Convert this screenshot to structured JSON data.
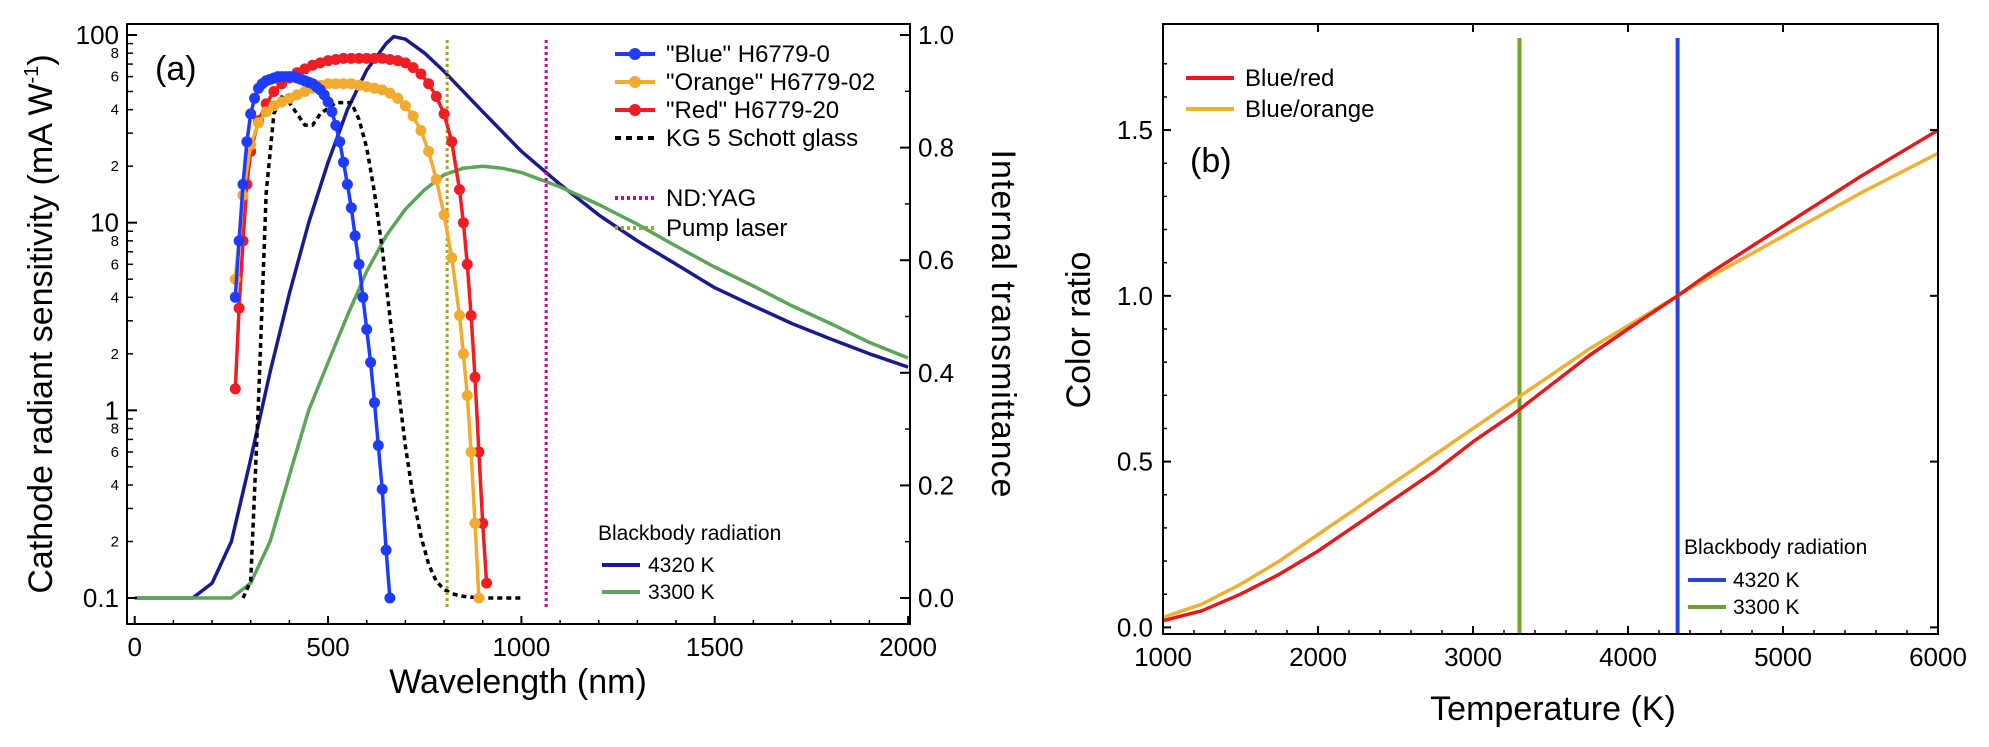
{
  "chart_data": [
    {
      "panel": "(a)",
      "type": "line",
      "xlabel": "Wavelength (nm)",
      "ylabel": "Cathode radiant sensitivity (mA W-1)",
      "ylabel_main": "Cathode radiant sensitivity (mA W",
      "ylabel_exp": "-1",
      "ylabel_close": ")",
      "ylabel_right": "Internal transmittance",
      "xlim": [
        -20,
        2005
      ],
      "xticks": [
        0,
        500,
        1000,
        1500,
        2000
      ],
      "xtick_labels": [
        "0",
        "500",
        "1000",
        "1500",
        "2000"
      ],
      "ylim": [
        0.1,
        100
      ],
      "yscale": "log",
      "yticks": [
        0.1,
        1,
        10,
        100
      ],
      "ytick_labels": [
        "0.1",
        "1",
        "10",
        "100"
      ],
      "yminor_labels": [
        {
          "value": 2,
          "label": "2"
        },
        {
          "value": 4,
          "label": "4"
        },
        {
          "value": 6,
          "label": "6"
        },
        {
          "value": 8,
          "label": "8"
        },
        {
          "value": 20,
          "label": "2"
        },
        {
          "value": 40,
          "label": "4"
        },
        {
          "value": 60,
          "label": "6"
        },
        {
          "value": 80,
          "label": "8"
        },
        {
          "value": 0.2,
          "label": "2"
        },
        {
          "value": 0.4,
          "label": "4"
        },
        {
          "value": 0.6,
          "label": "6"
        },
        {
          "value": 0.8,
          "label": "8"
        }
      ],
      "y2lim": [
        0,
        1.0
      ],
      "y2ticks": [
        0.0,
        0.2,
        0.4,
        0.6,
        0.8,
        1.0
      ],
      "y2tick_labels": [
        "0.0",
        "0.2",
        "0.4",
        "0.6",
        "0.8",
        "1.0"
      ],
      "series": [
        {
          "name": "\"Blue\" H6779-0",
          "color": "#1f3bff",
          "axis": "left",
          "markers": true,
          "x": [
            260,
            270,
            280,
            290,
            300,
            310,
            320,
            330,
            340,
            350,
            360,
            370,
            380,
            390,
            400,
            410,
            420,
            430,
            440,
            450,
            460,
            470,
            480,
            490,
            500,
            510,
            520,
            530,
            540,
            550,
            560,
            570,
            580,
            590,
            600,
            610,
            620,
            630,
            640,
            650,
            660
          ],
          "y": [
            4,
            8,
            16,
            27,
            38,
            46,
            52,
            55,
            57,
            58,
            59,
            60,
            60,
            60,
            60,
            60,
            59,
            58,
            57,
            56,
            55,
            53,
            51,
            48,
            44,
            39,
            33,
            27,
            21,
            16,
            12,
            8.5,
            6,
            4,
            2.7,
            1.8,
            1.1,
            0.65,
            0.38,
            0.18,
            0.1
          ]
        },
        {
          "name": "\"Orange\" H6779-02",
          "color": "#f2ab2e",
          "axis": "left",
          "markers": true,
          "x": [
            260,
            280,
            300,
            320,
            340,
            360,
            380,
            400,
            420,
            440,
            460,
            480,
            500,
            520,
            540,
            560,
            580,
            600,
            620,
            640,
            660,
            680,
            700,
            720,
            740,
            760,
            780,
            800,
            820,
            840,
            850,
            860,
            870,
            880,
            890
          ],
          "y": [
            5,
            14,
            26,
            34,
            39,
            42,
            44,
            46,
            48,
            50,
            52,
            54,
            55,
            55,
            55,
            55,
            54,
            53,
            52,
            51,
            49,
            46,
            42,
            37,
            31,
            24,
            17,
            11,
            6.5,
            3.2,
            2,
            1.2,
            0.6,
            0.25,
            0.1
          ]
        },
        {
          "name": "\"Red\" H6779-20",
          "color": "#ee1e24",
          "axis": "left",
          "markers": true,
          "x": [
            260,
            270,
            280,
            290,
            300,
            320,
            340,
            360,
            380,
            400,
            420,
            440,
            460,
            480,
            500,
            520,
            540,
            560,
            580,
            600,
            620,
            640,
            660,
            680,
            700,
            720,
            740,
            760,
            780,
            800,
            820,
            840,
            850,
            860,
            870,
            880,
            890,
            900,
            910
          ],
          "y": [
            1.3,
            3.5,
            8,
            16,
            24,
            35,
            43,
            50,
            55,
            59,
            63,
            66,
            69,
            71,
            73,
            74,
            75,
            75,
            75,
            75,
            75,
            75,
            74,
            73,
            71,
            67,
            62,
            55,
            47,
            38,
            27,
            15,
            10,
            6,
            3.2,
            1.5,
            0.6,
            0.25,
            0.12
          ]
        },
        {
          "name": "KG 5 Schott glass",
          "color": "#000000",
          "axis": "right",
          "dashed": true,
          "x": [
            280,
            300,
            320,
            340,
            360,
            380,
            400,
            420,
            440,
            460,
            480,
            500,
            520,
            540,
            560,
            580,
            600,
            620,
            640,
            660,
            680,
            700,
            720,
            740,
            760,
            780,
            800,
            820,
            840,
            860,
            880,
            900,
            940,
            1000
          ],
          "y": [
            0.0,
            0.03,
            0.35,
            0.72,
            0.86,
            0.89,
            0.88,
            0.86,
            0.84,
            0.84,
            0.86,
            0.87,
            0.88,
            0.88,
            0.88,
            0.85,
            0.8,
            0.72,
            0.62,
            0.5,
            0.38,
            0.27,
            0.18,
            0.11,
            0.06,
            0.03,
            0.015,
            0.008,
            0.004,
            0.002,
            0.001,
            0.0,
            0.0,
            0.0
          ]
        },
        {
          "name": "ND:YAG",
          "color": "#d4009a",
          "axis": "left",
          "dotted": true,
          "vline": 1064
        },
        {
          "name": "Pump laser",
          "color": "#a9a21c",
          "axis": "left",
          "dotted": true,
          "vline": 808
        },
        {
          "name": "4320 K",
          "color": "#1a1a8c",
          "axis": "left",
          "group": "Blackbody radiation",
          "x": [
            0,
            150,
            200,
            250,
            300,
            350,
            400,
            450,
            500,
            550,
            600,
            650,
            670,
            700,
            750,
            800,
            900,
            1000,
            1100,
            1200,
            1300,
            1400,
            1500,
            1600,
            1700,
            1800,
            1900,
            2000
          ],
          "y": [
            0.1,
            0.1,
            0.12,
            0.2,
            0.55,
            1.6,
            4.2,
            10,
            21,
            40,
            65,
            90,
            98,
            95,
            80,
            64,
            39,
            24,
            16,
            11,
            8,
            6,
            4.5,
            3.6,
            2.9,
            2.4,
            2.0,
            1.7
          ]
        },
        {
          "name": "3300 K",
          "color": "#5aa55a",
          "axis": "left",
          "group": "Blackbody radiation",
          "x": [
            0,
            250,
            300,
            350,
            400,
            450,
            500,
            550,
            600,
            650,
            700,
            750,
            800,
            850,
            900,
            950,
            1000,
            1100,
            1200,
            1300,
            1400,
            1500,
            1600,
            1700,
            1800,
            1900,
            2000
          ],
          "y": [
            0.1,
            0.1,
            0.12,
            0.2,
            0.45,
            1.0,
            1.8,
            3.2,
            5.5,
            8.5,
            11.8,
            15,
            18,
            19.5,
            20,
            19.5,
            18.5,
            15.5,
            12.5,
            9.8,
            7.5,
            5.8,
            4.6,
            3.6,
            2.9,
            2.3,
            1.9
          ]
        }
      ],
      "legend_group_title": "Blackbody radiation"
    },
    {
      "panel": "(b)",
      "type": "line",
      "xlabel": "Temperature (K)",
      "ylabel": "Color ratio",
      "xlim": [
        1000,
        6000
      ],
      "xticks": [
        1000,
        2000,
        3000,
        4000,
        5000,
        6000
      ],
      "xtick_labels": [
        "1000",
        "2000",
        "3000",
        "4000",
        "5000",
        "6000"
      ],
      "ylim": [
        -0.02,
        1.82
      ],
      "yticks": [
        0.0,
        0.5,
        1.0,
        1.5
      ],
      "ytick_labels": [
        "0.0",
        "0.5",
        "1.0",
        "1.5"
      ],
      "series": [
        {
          "name": "Blue/red",
          "color": "#e41a1c",
          "x": [
            1000,
            1250,
            1500,
            1750,
            2000,
            2250,
            2500,
            2750,
            3000,
            3250,
            3500,
            3750,
            4000,
            4320,
            4500,
            5000,
            5500,
            6000
          ],
          "y": [
            0.02,
            0.05,
            0.1,
            0.16,
            0.23,
            0.31,
            0.39,
            0.47,
            0.56,
            0.64,
            0.73,
            0.82,
            0.9,
            1.0,
            1.06,
            1.21,
            1.36,
            1.5
          ]
        },
        {
          "name": "Blue/orange",
          "color": "#f0b033",
          "x": [
            1000,
            1250,
            1500,
            1750,
            2000,
            2250,
            2500,
            2750,
            3000,
            3250,
            3500,
            3750,
            4000,
            4320,
            4500,
            5000,
            5500,
            6000
          ],
          "y": [
            0.03,
            0.07,
            0.13,
            0.2,
            0.28,
            0.36,
            0.44,
            0.52,
            0.6,
            0.68,
            0.76,
            0.84,
            0.91,
            1.0,
            1.05,
            1.18,
            1.31,
            1.43
          ]
        },
        {
          "name": "4320 K",
          "color": "#2646d8",
          "vline": 4320,
          "group": "Blackbody radiation"
        },
        {
          "name": "3300 K",
          "color": "#6aa32d",
          "vline": 3300,
          "group": "Blackbody radiation"
        }
      ],
      "legend_group_title": "Blackbody radiation"
    }
  ]
}
